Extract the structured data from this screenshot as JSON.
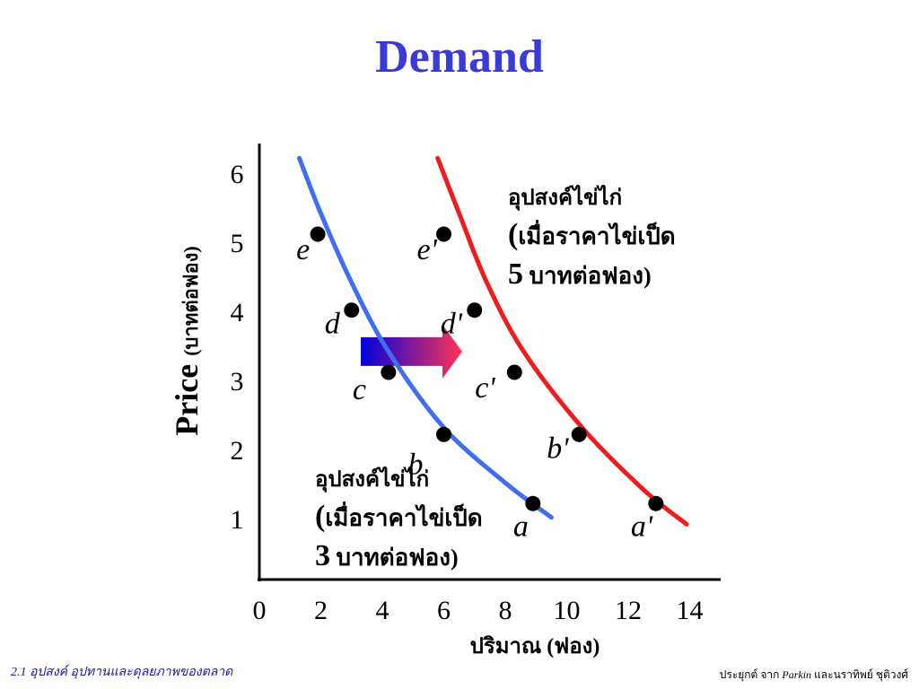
{
  "title": "Demand",
  "footer": {
    "left": "2.1  อุปสงค์ อุปทานและดุลยภาพของตลาด",
    "right_prefix": "ประยุกต์ จาก",
    "right_name": "Parkin",
    "right_suffix": "และนราทิพย์ ชุติวงศ์"
  },
  "chart_data": {
    "type": "line",
    "xlabel": "ปริมาณ (ฟอง)",
    "ylabel_main": "Price",
    "ylabel_unit": "(บาทต่อฟอง)",
    "x_ticks": [
      "0",
      "2",
      "4",
      "6",
      "8",
      "10",
      "12",
      "14"
    ],
    "y_ticks": [
      "1",
      "2",
      "3",
      "4",
      "5",
      "6"
    ],
    "xlim": [
      0,
      15
    ],
    "ylim": [
      0,
      6.5
    ],
    "grid": false,
    "series": [
      {
        "color": "#3f6ef0",
        "curve": [
          [
            1.3,
            6.1
          ],
          [
            2,
            5.3
          ],
          [
            3,
            4.3
          ],
          [
            4.2,
            3.3
          ],
          [
            6,
            2.2
          ],
          [
            8,
            1.4
          ],
          [
            9.5,
            0.9
          ]
        ],
        "points": [
          {
            "label": "a",
            "x": 8.9,
            "y": 1.1
          },
          {
            "label": "b",
            "x": 6.0,
            "y": 2.1
          },
          {
            "label": "c",
            "x": 4.2,
            "y": 3.0
          },
          {
            "label": "d",
            "x": 3.0,
            "y": 3.9
          },
          {
            "label": "e",
            "x": 1.9,
            "y": 5.0
          }
        ],
        "annotation": [
          "อุปสงค์ไข่ไก่",
          "(เมื่อราคาไข่เป็ด",
          "3 บาทต่อฟอง)"
        ]
      },
      {
        "color": "#ee1c1c",
        "curve": [
          [
            5.8,
            6.1
          ],
          [
            6.5,
            5.3
          ],
          [
            7.4,
            4.3
          ],
          [
            8.6,
            3.3
          ],
          [
            10.5,
            2.2
          ],
          [
            12.5,
            1.3
          ],
          [
            13.9,
            0.8
          ]
        ],
        "points": [
          {
            "label": "a'",
            "x": 12.9,
            "y": 1.1
          },
          {
            "label": "b'",
            "x": 10.4,
            "y": 2.1
          },
          {
            "label": "c'",
            "x": 8.3,
            "y": 3.0
          },
          {
            "label": "d'",
            "x": 7.0,
            "y": 3.9
          },
          {
            "label": "e'",
            "x": 6.0,
            "y": 5.0
          }
        ],
        "annotation": [
          "อุปสงค์ไข่ไก่",
          "(เมื่อราคาไข่เป็ด",
          "5 บาทต่อฟอง)"
        ]
      }
    ],
    "shift_arrow": {
      "from": [
        3.3,
        3.3
      ],
      "to": [
        6.6,
        3.3
      ],
      "colors": [
        "#0000dd",
        "#ff3355"
      ]
    }
  }
}
